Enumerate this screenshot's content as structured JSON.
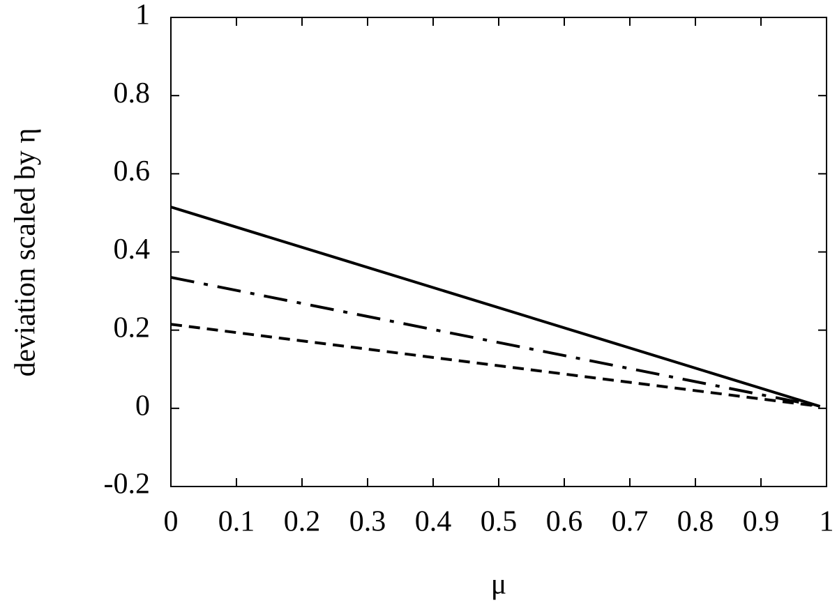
{
  "chart_data": {
    "type": "line",
    "xlabel": "μ",
    "ylabel": "deviation scaled by η",
    "x": [
      0,
      0.99
    ],
    "series": [
      {
        "color": "#000000",
        "dash": "solid",
        "values": [
          0.515,
          0.005
        ]
      },
      {
        "color": "#000000",
        "dash": "dash-dot",
        "values": [
          0.335,
          0.005
        ]
      },
      {
        "color": "#000000",
        "dash": "dashed",
        "values": [
          0.215,
          0.005
        ]
      }
    ],
    "xlim": [
      0,
      1
    ],
    "xticks": [
      0,
      0.1,
      0.2,
      0.3,
      0.4,
      0.5,
      0.6,
      0.7,
      0.8,
      0.9,
      1
    ],
    "ylim": [
      -0.2,
      1
    ],
    "yticks": [
      -0.2,
      0,
      0.2,
      0.4,
      0.6,
      0.8,
      1
    ],
    "grid": false
  }
}
